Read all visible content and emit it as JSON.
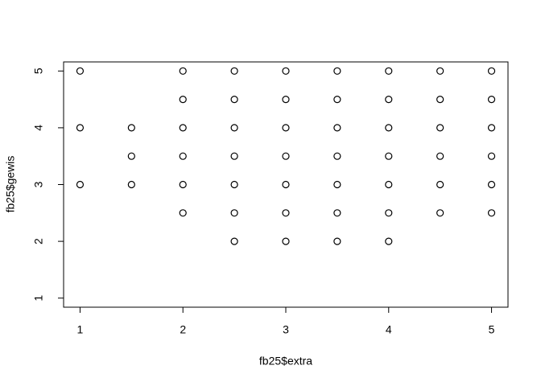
{
  "chart_data": {
    "type": "scatter",
    "x_label": "fb25$extra",
    "y_label": "fb25$gewis",
    "x": [
      1,
      1,
      1,
      1.5,
      1.5,
      1.5,
      2,
      2,
      2,
      2,
      2,
      2,
      2.5,
      2.5,
      2.5,
      2.5,
      2.5,
      2.5,
      2.5,
      3,
      3,
      3,
      3,
      3,
      3,
      3,
      3.5,
      3.5,
      3.5,
      3.5,
      3.5,
      3.5,
      3.5,
      4,
      4,
      4,
      4,
      4,
      4,
      4,
      4.5,
      4.5,
      4.5,
      4.5,
      4.5,
      4.5,
      5,
      5,
      5,
      5,
      5,
      5
    ],
    "y": [
      5,
      4,
      3,
      4,
      3.5,
      3,
      5,
      4.5,
      4,
      3.5,
      3,
      2.5,
      5,
      4.5,
      4,
      3.5,
      3,
      2.5,
      2,
      5,
      4.5,
      4,
      3.5,
      3,
      2.5,
      2,
      5,
      4.5,
      4,
      3.5,
      3,
      2.5,
      2,
      5,
      4.5,
      4,
      3.5,
      3,
      2.5,
      2,
      5,
      4.5,
      4,
      3.5,
      3,
      2.5,
      5,
      4.5,
      4,
      3.5,
      3,
      2.5
    ],
    "color": "#000000",
    "xlim": [
      0.84,
      5.16
    ],
    "ylim": [
      0.84,
      5.16
    ],
    "xticks": [
      1,
      2,
      3,
      4,
      5
    ],
    "yticks": [
      1,
      2,
      3,
      4,
      5
    ]
  }
}
